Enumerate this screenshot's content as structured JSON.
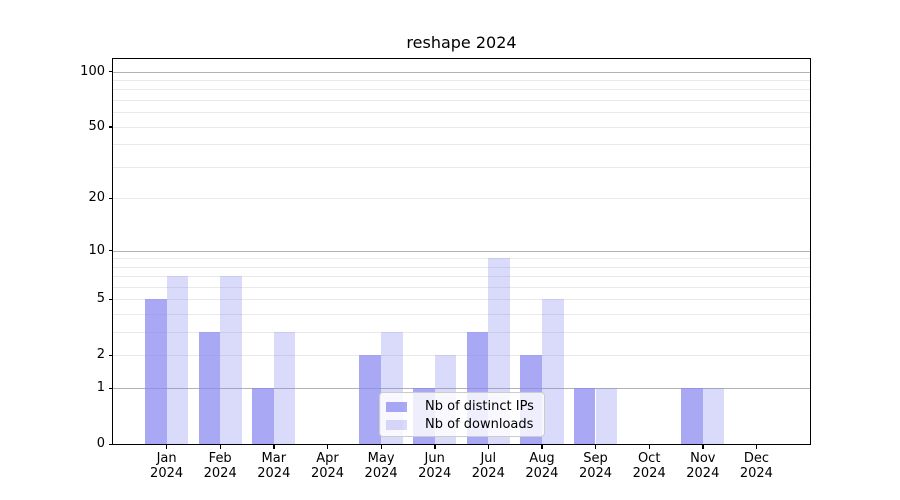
{
  "chart_data": {
    "type": "bar",
    "title": "reshape 2024",
    "categories": [
      "Jan 2024",
      "Feb 2024",
      "Mar 2024",
      "Apr 2024",
      "May 2024",
      "Jun 2024",
      "Jul 2024",
      "Aug 2024",
      "Sep 2024",
      "Oct 2024",
      "Nov 2024",
      "Dec 2024"
    ],
    "series": [
      {
        "name": "Nb of distinct IPs",
        "values": [
          5,
          3,
          1,
          0,
          2,
          1,
          3,
          2,
          1,
          0,
          1,
          0
        ],
        "color": "rgba(134,134,240,0.72)"
      },
      {
        "name": "Nb of downloads",
        "values": [
          7,
          7,
          3,
          0,
          3,
          2,
          9,
          5,
          1,
          0,
          1,
          0
        ],
        "color": "rgba(134,134,240,0.30)"
      }
    ],
    "yscale": "log1p",
    "ylim": [
      0,
      117
    ],
    "yticks": [
      0,
      1,
      2,
      5,
      10,
      20,
      50,
      100
    ],
    "major_gridlines": [
      1,
      10,
      100
    ],
    "minor_gridlines": [
      2,
      3,
      4,
      5,
      6,
      7,
      8,
      9,
      20,
      30,
      40,
      50,
      60,
      70,
      80,
      90
    ],
    "grid": true,
    "legend_position": "lower center",
    "xlabel": "",
    "ylabel": ""
  },
  "colors": {
    "bar_ips": "rgba(134,134,240,0.72)",
    "bar_downloads": "rgba(134,134,240,0.30)",
    "grid_major": "#b2b2b2",
    "grid_minor": "#e9e9e9",
    "spine": "#000000",
    "legend_border": "#cccccc",
    "legend_background": "rgba(255,255,255,0.8)",
    "background": "#ffffff"
  }
}
